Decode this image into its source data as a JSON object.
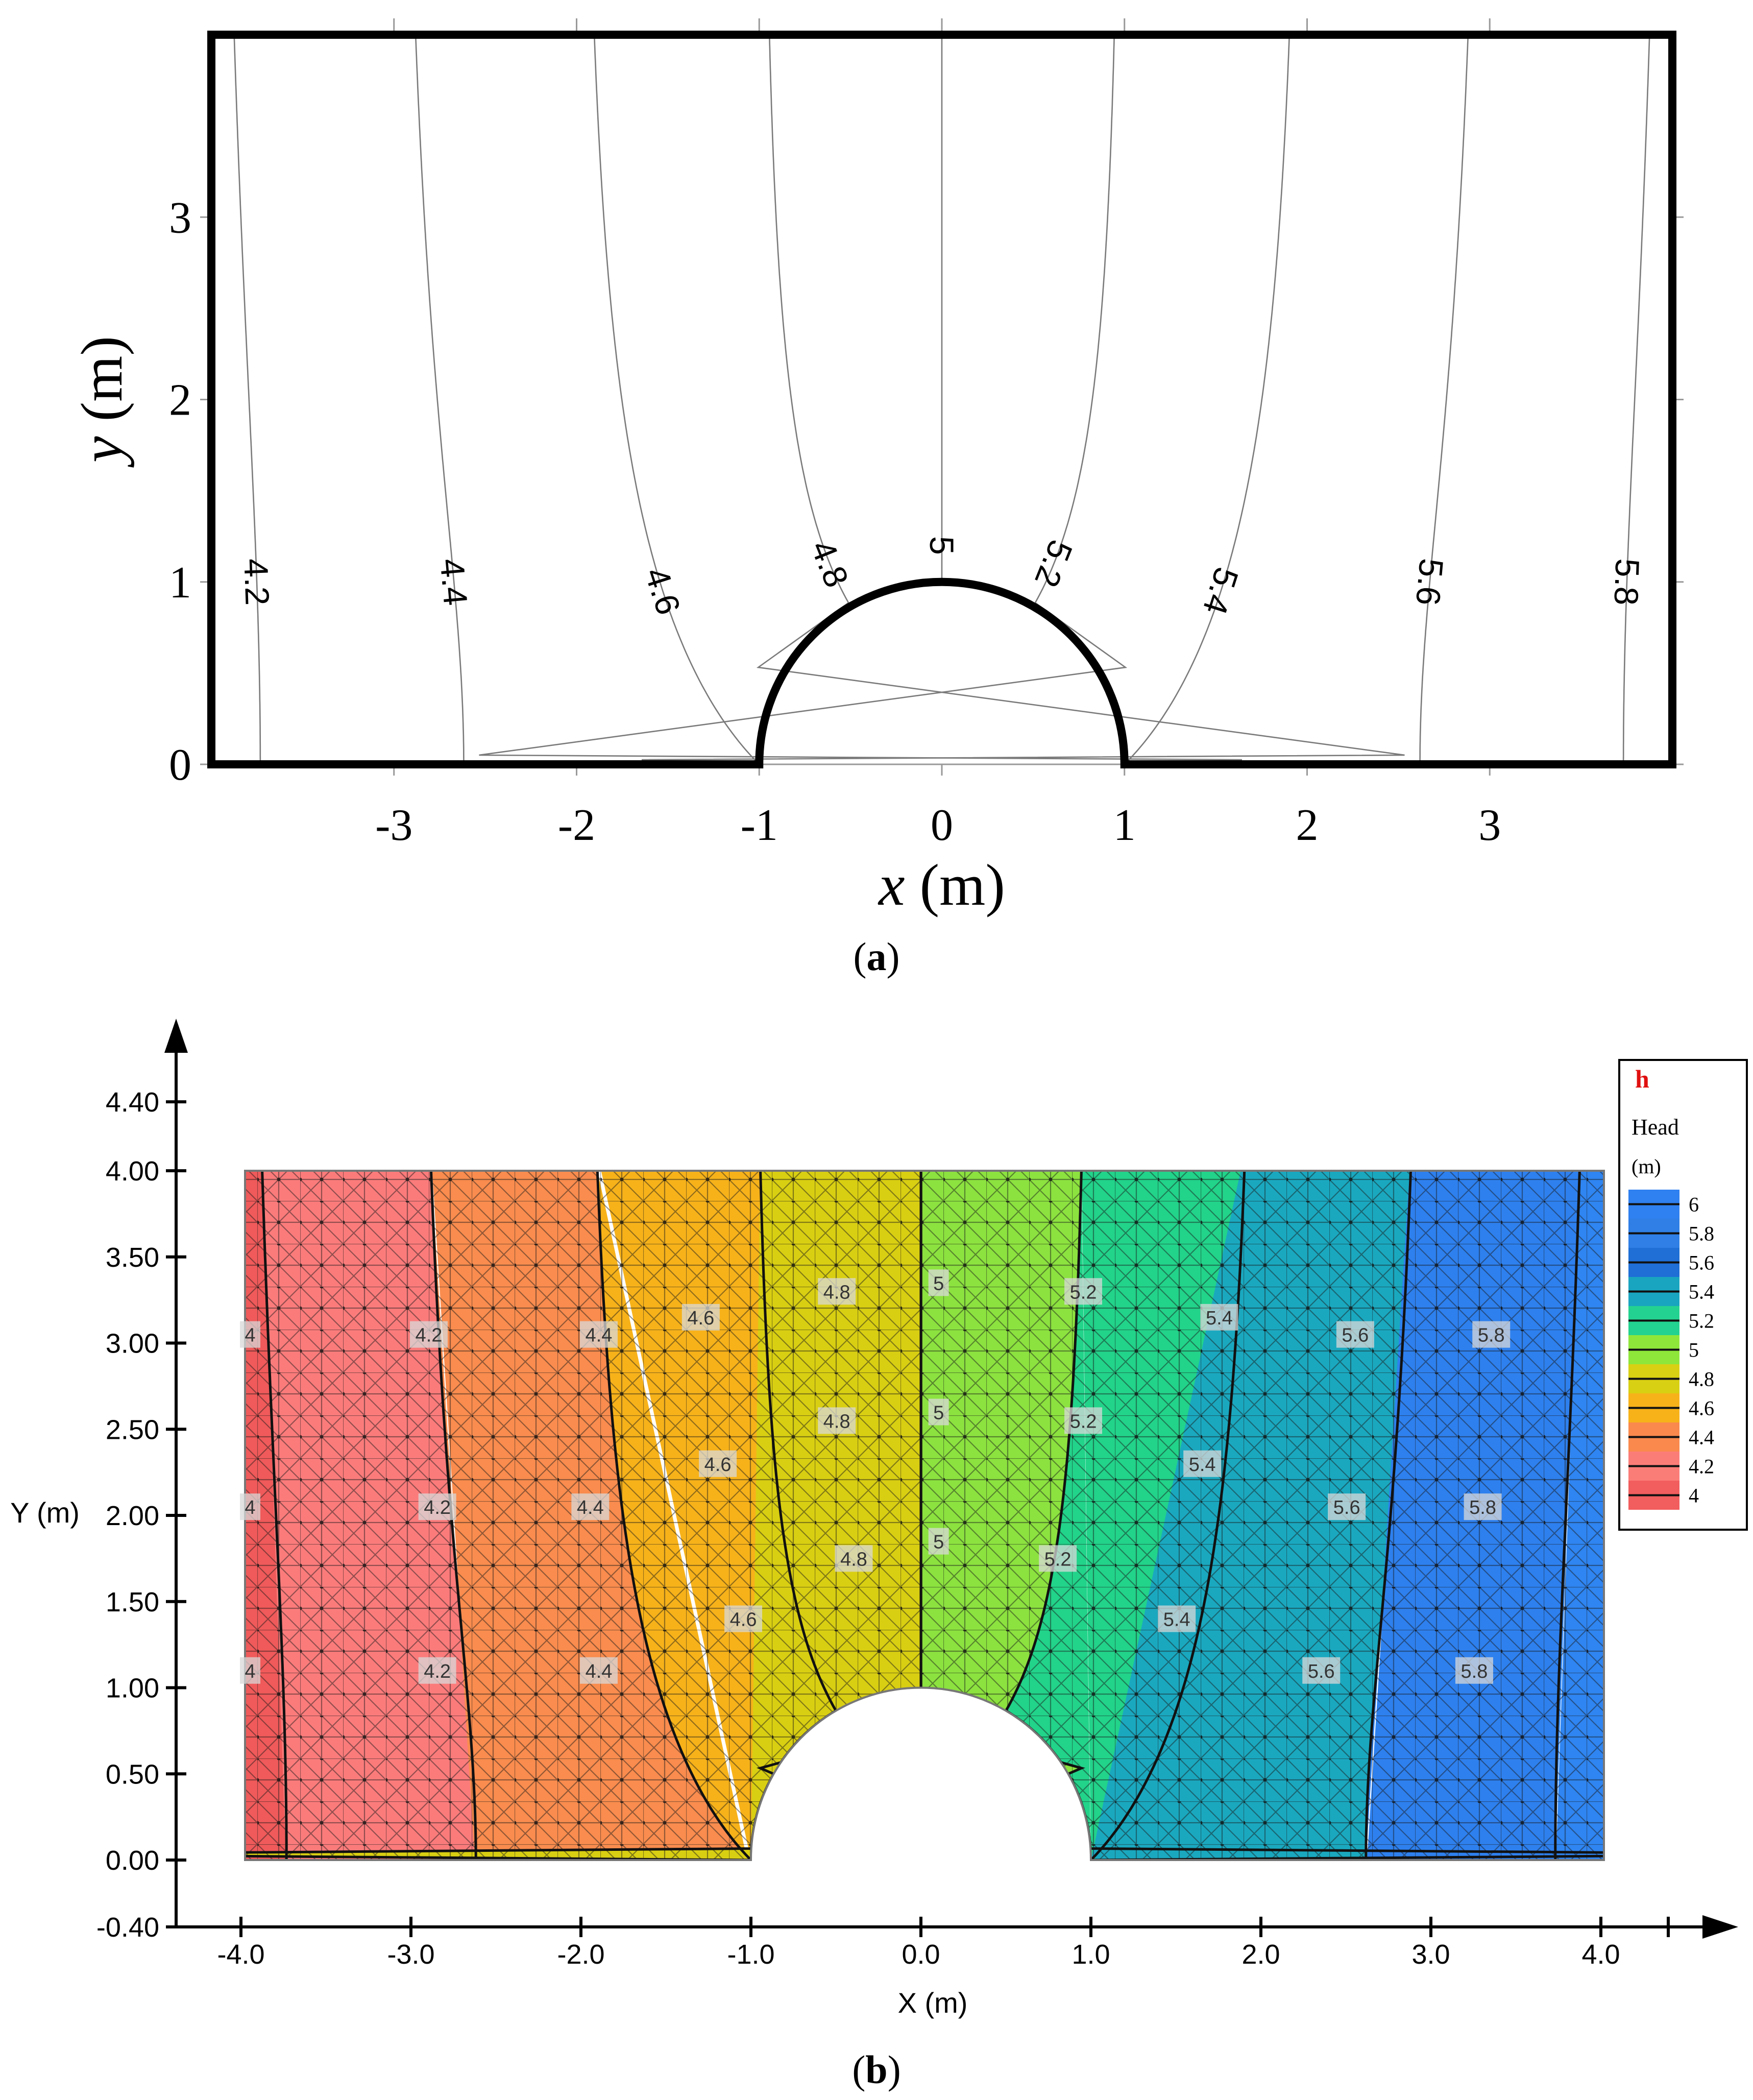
{
  "figure": {
    "panel_a_caption": "(a)",
    "panel_b_caption": "(b)",
    "caption_letters": [
      "a",
      "b"
    ]
  },
  "chart_data": [
    {
      "panel": "a",
      "type": "contour",
      "xlabel_var": "x",
      "xlabel_unit": "(m)",
      "ylabel_var": "y",
      "ylabel_unit": "(m)",
      "xlim": [
        -4,
        4
      ],
      "ylim": [
        0,
        4
      ],
      "x_ticks": [
        "-3",
        "-2",
        "-1",
        "0",
        "1",
        "2",
        "3"
      ],
      "x_tick_values": [
        -3,
        -2,
        -1,
        0,
        1,
        2,
        3
      ],
      "y_ticks": [
        "0",
        "1",
        "2",
        "3"
      ],
      "y_tick_values": [
        0,
        1,
        2,
        3
      ],
      "grid": false,
      "domain": "rectangle -4<=x<=4, 0<=y<=4 with semicircular cut-out of radius 1 centred at origin",
      "contour_labels": [
        "4.2",
        "4.4",
        "4.6",
        "4.8",
        "5",
        "5.2",
        "5.4",
        "5.6",
        "5.8"
      ],
      "contour_levels": [
        4.2,
        4.4,
        4.6,
        4.8,
        5.0,
        5.2,
        5.4,
        5.6,
        5.8
      ]
    },
    {
      "panel": "b",
      "type": "heatmap",
      "xlabel": "X (m)",
      "ylabel": "Y (m)",
      "xlim": [
        -4,
        4
      ],
      "ylim": [
        0,
        4
      ],
      "x_ticks": [
        "-4.0",
        "-3.0",
        "-2.0",
        "-1.0",
        "0.0",
        "1.0",
        "2.0",
        "3.0",
        "4.0"
      ],
      "x_tick_values": [
        -4,
        -3,
        -2,
        -1,
        0,
        1,
        2,
        3,
        4
      ],
      "y_ticks": [
        "-0.40",
        "0.00",
        "0.50",
        "1.00",
        "1.50",
        "2.00",
        "2.50",
        "3.00",
        "3.50",
        "4.00",
        "4.40"
      ],
      "y_tick_values": [
        -0.4,
        0,
        0.5,
        1,
        1.5,
        2,
        2.5,
        3,
        3.5,
        4,
        4.4
      ],
      "grid": false,
      "mesh": "triangular finite-element mesh",
      "legend": {
        "position": "top-right",
        "symbol": "h",
        "title": "Head",
        "unit": "(m)",
        "labels": [
          "6",
          "5.8",
          "5.6",
          "5.4",
          "5.2",
          "5",
          "4.8",
          "4.6",
          "4.4",
          "4.2",
          "4"
        ],
        "values": [
          6,
          5.8,
          5.6,
          5.4,
          5.2,
          5,
          4.8,
          4.6,
          4.4,
          4.2,
          4
        ],
        "colors": [
          "#2f80f0",
          "#2f7fe6",
          "#1f6fd6",
          "#19a5c0",
          "#23d290",
          "#8ee63a",
          "#d8d012",
          "#f7b21a",
          "#f9894d",
          "#fb7d78",
          "#f25d5d"
        ]
      },
      "contour_levels": [
        4.2,
        4.4,
        4.6,
        4.8,
        5.0,
        5.2,
        5.4,
        5.6,
        5.8
      ],
      "band_colors": [
        "#f05a5a",
        "#fb7b7b",
        "#f98c4e",
        "#f7b21a",
        "#d9cf12",
        "#8ce23f",
        "#22d38a",
        "#1aa8bf",
        "#2e80ee",
        "#2f85f1"
      ],
      "contour_labels": [
        {
          "text": "4",
          "x": -4.0,
          "y": 3.05
        },
        {
          "text": "4.2",
          "x": -3.0,
          "y": 3.05
        },
        {
          "text": "4.4",
          "x": -2.0,
          "y": 3.05
        },
        {
          "text": "4.6",
          "x": -1.4,
          "y": 3.15
        },
        {
          "text": "4.8",
          "x": -0.6,
          "y": 3.3
        },
        {
          "text": "5",
          "x": 0.05,
          "y": 3.35
        },
        {
          "text": "5.2",
          "x": 0.85,
          "y": 3.3
        },
        {
          "text": "5.4",
          "x": 1.65,
          "y": 3.15
        },
        {
          "text": "5.6",
          "x": 2.45,
          "y": 3.05
        },
        {
          "text": "5.8",
          "x": 3.25,
          "y": 3.05
        },
        {
          "text": "4",
          "x": -4.0,
          "y": 2.05
        },
        {
          "text": "4.2",
          "x": -2.95,
          "y": 2.05
        },
        {
          "text": "4.4",
          "x": -2.05,
          "y": 2.05
        },
        {
          "text": "4.6",
          "x": -1.3,
          "y": 2.3
        },
        {
          "text": "4.8",
          "x": -0.6,
          "y": 2.55
        },
        {
          "text": "5",
          "x": 0.05,
          "y": 2.6
        },
        {
          "text": "5.2",
          "x": 0.85,
          "y": 2.55
        },
        {
          "text": "5.4",
          "x": 1.55,
          "y": 2.3
        },
        {
          "text": "5.6",
          "x": 2.4,
          "y": 2.05
        },
        {
          "text": "5.8",
          "x": 3.2,
          "y": 2.05
        },
        {
          "text": "4",
          "x": -4.0,
          "y": 1.1
        },
        {
          "text": "4.2",
          "x": -2.95,
          "y": 1.1
        },
        {
          "text": "4.4",
          "x": -2.0,
          "y": 1.1
        },
        {
          "text": "4.6",
          "x": -1.15,
          "y": 1.4
        },
        {
          "text": "4.8",
          "x": -0.5,
          "y": 1.75
        },
        {
          "text": "5",
          "x": 0.05,
          "y": 1.85
        },
        {
          "text": "5.2",
          "x": 0.7,
          "y": 1.75
        },
        {
          "text": "5.4",
          "x": 1.4,
          "y": 1.4
        },
        {
          "text": "5.6",
          "x": 2.25,
          "y": 1.1
        },
        {
          "text": "5.8",
          "x": 3.15,
          "y": 1.1
        }
      ]
    }
  ]
}
